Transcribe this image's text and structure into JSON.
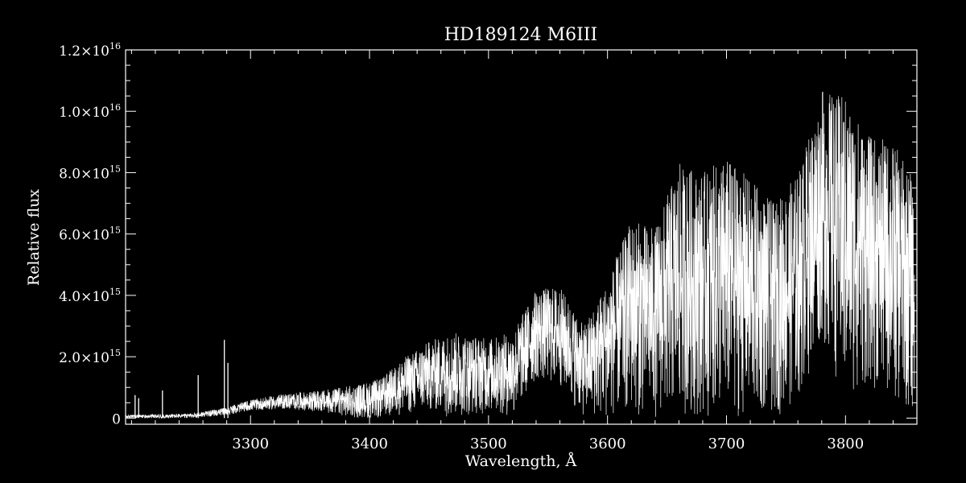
{
  "chart_data": {
    "type": "line",
    "title": "HD189124   M6III",
    "xlabel": "Wavelength, Å",
    "ylabel": "Relative flux",
    "xlim": [
      3195,
      3860
    ],
    "ylim": [
      -200000000000000.0,
      1.2e+16
    ],
    "grid": false,
    "legend": "none",
    "x_major_ticks": [
      3300,
      3400,
      3500,
      3600,
      3700,
      3800
    ],
    "x_tick_labels": [
      "3300",
      "3400",
      "3500",
      "3600",
      "3700",
      "3800"
    ],
    "x_minor_step": 20,
    "y_major_ticks": [
      0,
      2000000000000000.0,
      4000000000000000.0,
      6000000000000000.0,
      8000000000000000.0,
      1e+16,
      1.2e+16
    ],
    "y_tick_labels": [
      {
        "mant": "0",
        "exp": ""
      },
      {
        "mant": "2.0×10",
        "exp": "15"
      },
      {
        "mant": "4.0×10",
        "exp": "15"
      },
      {
        "mant": "6.0×10",
        "exp": "15"
      },
      {
        "mant": "8.0×10",
        "exp": "15"
      },
      {
        "mant": "1.0×10",
        "exp": "16"
      },
      {
        "mant": "1.2×10",
        "exp": "16"
      }
    ],
    "y_minor_step": 500000000000000.0,
    "series": [
      {
        "color": "#ffffff",
        "envelope": {
          "x": [
            3195,
            3250,
            3280,
            3300,
            3330,
            3360,
            3390,
            3410,
            3430,
            3450,
            3470,
            3500,
            3520,
            3540,
            3560,
            3580,
            3600,
            3620,
            3640,
            3660,
            3680,
            3700,
            3720,
            3740,
            3760,
            3780,
            3800,
            3820,
            3840,
            3858
          ],
          "max": [
            100000000000000.0,
            150000000000000.0,
            350000000000000.0,
            600000000000000.0,
            800000000000000.0,
            900000000000000.0,
            1100000000000000.0,
            1300000000000000.0,
            2000000000000000.0,
            2500000000000000.0,
            2800000000000000.0,
            2600000000000000.0,
            2800000000000000.0,
            4200000000000000.0,
            4300000000000000.0,
            3000000000000000.0,
            4500000000000000.0,
            6500000000000000.0,
            6200000000000000.0,
            8300000000000000.0,
            8000000000000000.0,
            8500000000000000.0,
            7800000000000000.0,
            7000000000000000.0,
            8000000000000000.0,
            1.07e+16,
            1.05e+16,
            9200000000000000.0,
            9000000000000000.0,
            7800000000000000.0
          ],
          "min": [
            0.0,
            0.0,
            100000000000000.0,
            250000000000000.0,
            300000000000000.0,
            200000000000000.0,
            0.0,
            0.0,
            100000000000000.0,
            200000000000000.0,
            0.0,
            150000000000000.0,
            0.0,
            1200000000000000.0,
            1000000000000000.0,
            0.0,
            0.0,
            100000000000000.0,
            0.0,
            100000000000000.0,
            0.0,
            0.0,
            0.0,
            0.0,
            500000000000000.0,
            2500000000000000.0,
            500000000000000.0,
            1000000000000000.0,
            500000000000000.0,
            0.0
          ]
        },
        "spikes": [
          {
            "x": 3203,
            "y": 750000000000000.0
          },
          {
            "x": 3206,
            "y": 650000000000000.0
          },
          {
            "x": 3226,
            "y": 900000000000000.0
          },
          {
            "x": 3256,
            "y": 1400000000000000.0
          },
          {
            "x": 3278,
            "y": 2550000000000000.0
          },
          {
            "x": 3281,
            "y": 1800000000000000.0
          }
        ]
      }
    ]
  }
}
